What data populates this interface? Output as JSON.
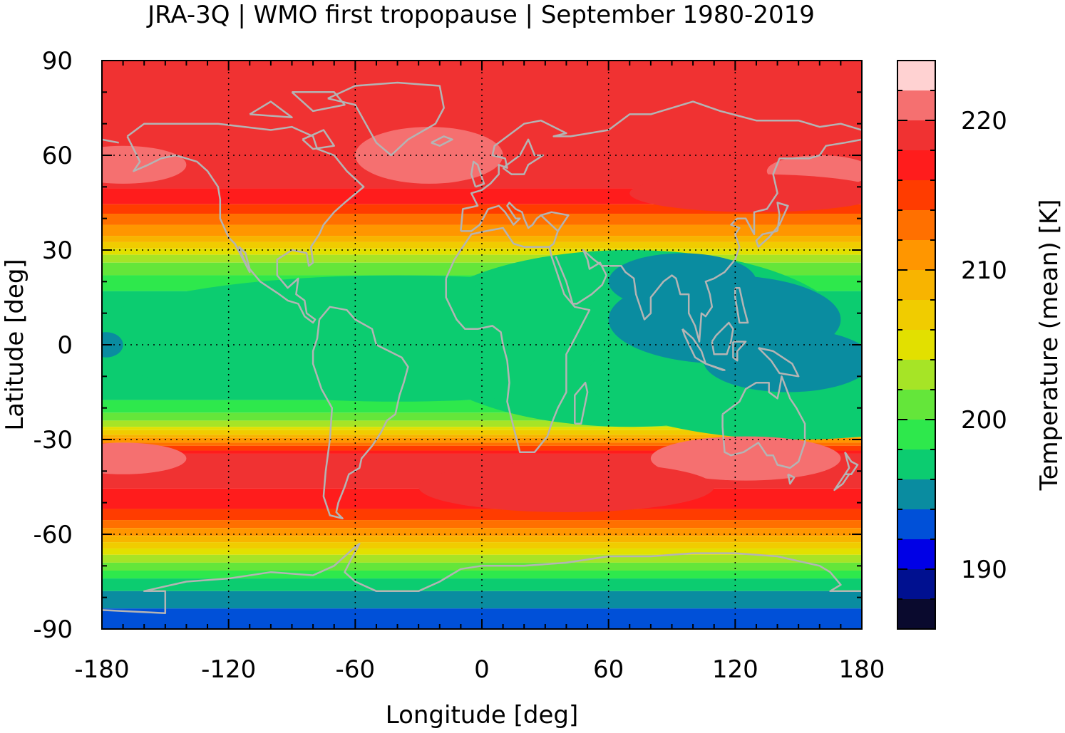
{
  "chart_data": {
    "type": "heatmap",
    "title": "JRA-3Q | WMO first tropopause | September 1980-2019",
    "xlabel": "Longitude [deg]",
    "ylabel": "Latitude [deg]",
    "xlim": [
      -180,
      180
    ],
    "ylim": [
      -90,
      90
    ],
    "x_ticks": [
      "-180",
      "-120",
      "-60",
      "0",
      "60",
      "120",
      "180"
    ],
    "y_ticks": [
      "90",
      "60",
      "30",
      "0",
      "-30",
      "-60",
      "-90"
    ],
    "grid": true,
    "colorbar": {
      "label": "Temperature (mean) [K]",
      "range": [
        186,
        224
      ],
      "ticks": [
        "190",
        "200",
        "210",
        "220"
      ],
      "levels": [
        186,
        188,
        190,
        192,
        194,
        196,
        198,
        200,
        202,
        204,
        206,
        208,
        210,
        212,
        214,
        216,
        218,
        220,
        222,
        224
      ],
      "colors": [
        "#0a0a2e",
        "#001090",
        "#0000e6",
        "#0050d8",
        "#0a8ca0",
        "#0ccc70",
        "#2ee84c",
        "#64e63a",
        "#a6e426",
        "#e2e000",
        "#f0cc00",
        "#f8b400",
        "#ff9600",
        "#ff7000",
        "#ff3c00",
        "#ff1c1c",
        "#f03232",
        "#f57070",
        "#ffd2d2"
      ]
    },
    "zonal_mean_temperature_K": {
      "lat": [
        -90,
        -86,
        -80,
        -75,
        -70,
        -65,
        -60,
        -55,
        -50,
        -45,
        -40,
        -35,
        -30,
        -25,
        -20,
        -15,
        -10,
        -5,
        0,
        5,
        10,
        15,
        20,
        25,
        30,
        35,
        40,
        45,
        50,
        55,
        60,
        65,
        70,
        75,
        80,
        85,
        90
      ],
      "values": [
        193,
        193,
        195,
        197,
        201,
        205,
        210,
        214,
        217,
        218,
        219,
        219,
        211,
        203,
        199,
        197,
        196,
        196,
        196,
        196,
        196,
        197,
        199,
        201,
        205,
        210,
        213,
        216,
        218,
        219,
        219,
        219,
        219,
        219,
        219,
        219,
        219
      ]
    },
    "coastline_color": "#b4b4b4"
  }
}
